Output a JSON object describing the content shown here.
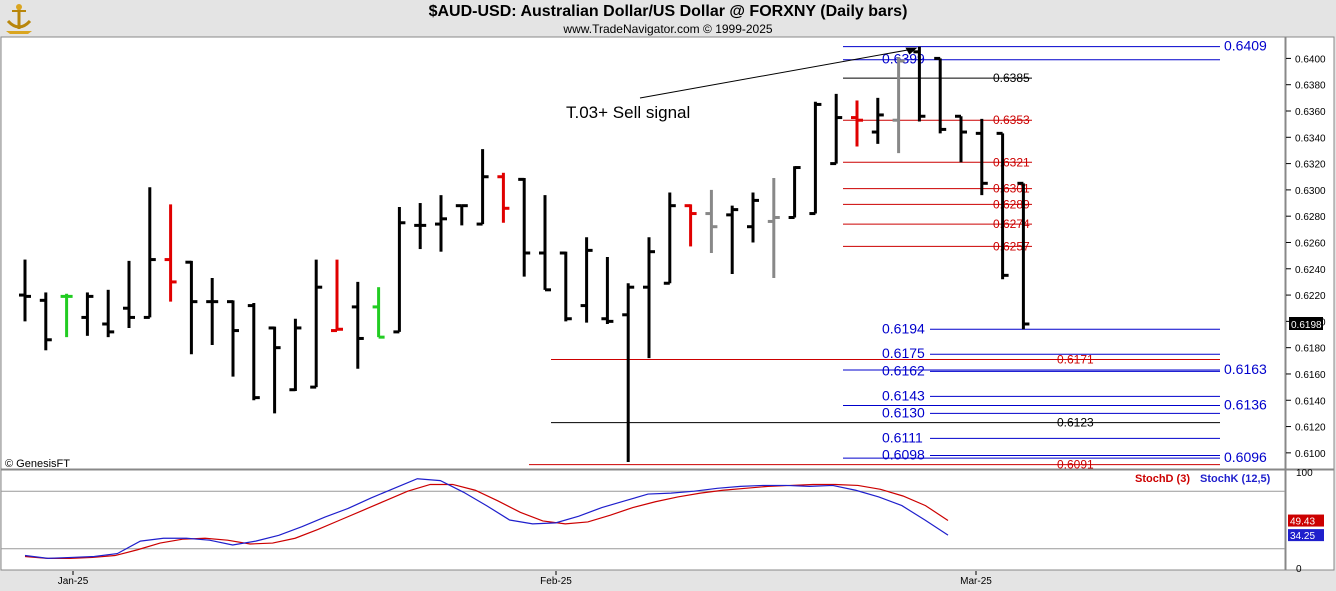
{
  "header": {
    "title": "$AUD-USD:  Australian Dollar/US Dollar @ FORXNY  (Daily bars)",
    "subtitle": "www.TradeNavigator.com © 1999-2025",
    "logo_icon": "trade-navigator-logo-icon"
  },
  "chart_data": [
    {
      "type": "ohlc",
      "title": "$AUD-USD:  Australian Dollar/US Dollar @ FORXNY  (Daily bars)",
      "ylim": [
        0.609,
        0.6414
      ],
      "y_ticks": [
        "0.6400",
        "0.6380",
        "0.6360",
        "0.6340",
        "0.6320",
        "0.6300",
        "0.6280",
        "0.6260",
        "0.6240",
        "0.6220",
        "0.6200",
        "0.6180",
        "0.6160",
        "0.6140",
        "0.6120",
        "0.6100"
      ],
      "x_ticks": [
        "Jan-25",
        "Feb-25",
        "Mar-25"
      ],
      "last_price": "0.6198",
      "watermark": "© GenesisFT",
      "colors": {
        "black": "#000000",
        "red": "#e00000",
        "green": "#22cc22",
        "gray": "#888888"
      },
      "bars": [
        {
          "o": 0.622,
          "h": 0.6247,
          "l": 0.62,
          "c": 0.6219,
          "color": "black"
        },
        {
          "o": 0.6216,
          "h": 0.6222,
          "l": 0.6178,
          "c": 0.6186,
          "color": "black"
        },
        {
          "o": 0.6219,
          "h": 0.6221,
          "l": 0.6188,
          "c": 0.6219,
          "color": "green"
        },
        {
          "o": 0.6203,
          "h": 0.6222,
          "l": 0.6189,
          "c": 0.6219,
          "color": "black"
        },
        {
          "o": 0.6198,
          "h": 0.6224,
          "l": 0.6188,
          "c": 0.6192,
          "color": "black"
        },
        {
          "o": 0.621,
          "h": 0.6246,
          "l": 0.6195,
          "c": 0.6203,
          "color": "black"
        },
        {
          "o": 0.6203,
          "h": 0.6302,
          "l": 0.6203,
          "c": 0.6247,
          "color": "black"
        },
        {
          "o": 0.6247,
          "h": 0.6289,
          "l": 0.6215,
          "c": 0.623,
          "color": "red"
        },
        {
          "o": 0.6245,
          "h": 0.6246,
          "l": 0.6175,
          "c": 0.6215,
          "color": "black"
        },
        {
          "o": 0.6215,
          "h": 0.6233,
          "l": 0.6182,
          "c": 0.6215,
          "color": "black"
        },
        {
          "o": 0.6215,
          "h": 0.6216,
          "l": 0.6158,
          "c": 0.6193,
          "color": "black"
        },
        {
          "o": 0.6212,
          "h": 0.6214,
          "l": 0.614,
          "c": 0.6142,
          "color": "black"
        },
        {
          "o": 0.6195,
          "h": 0.6196,
          "l": 0.613,
          "c": 0.618,
          "color": "black"
        },
        {
          "o": 0.6148,
          "h": 0.6202,
          "l": 0.6147,
          "c": 0.6195,
          "color": "black"
        },
        {
          "o": 0.615,
          "h": 0.6247,
          "l": 0.615,
          "c": 0.6226,
          "color": "black"
        },
        {
          "o": 0.6193,
          "h": 0.6247,
          "l": 0.6193,
          "c": 0.6194,
          "color": "red"
        },
        {
          "o": 0.6211,
          "h": 0.623,
          "l": 0.6164,
          "c": 0.6187,
          "color": "black"
        },
        {
          "o": 0.6211,
          "h": 0.6226,
          "l": 0.6188,
          "c": 0.6188,
          "color": "green"
        },
        {
          "o": 0.6192,
          "h": 0.6287,
          "l": 0.6192,
          "c": 0.6275,
          "color": "black"
        },
        {
          "o": 0.6273,
          "h": 0.629,
          "l": 0.6255,
          "c": 0.6273,
          "color": "black"
        },
        {
          "o": 0.6274,
          "h": 0.6296,
          "l": 0.6253,
          "c": 0.6278,
          "color": "black"
        },
        {
          "o": 0.6288,
          "h": 0.6288,
          "l": 0.6273,
          "c": 0.6288,
          "color": "black"
        },
        {
          "o": 0.6274,
          "h": 0.6331,
          "l": 0.6274,
          "c": 0.631,
          "color": "black"
        },
        {
          "o": 0.631,
          "h": 0.6313,
          "l": 0.6275,
          "c": 0.6286,
          "color": "red"
        },
        {
          "o": 0.6308,
          "h": 0.6309,
          "l": 0.6234,
          "c": 0.6252,
          "color": "black"
        },
        {
          "o": 0.6252,
          "h": 0.6296,
          "l": 0.6224,
          "c": 0.6224,
          "color": "black"
        },
        {
          "o": 0.6252,
          "h": 0.6253,
          "l": 0.62,
          "c": 0.6202,
          "color": "black"
        },
        {
          "o": 0.6212,
          "h": 0.6264,
          "l": 0.6199,
          "c": 0.6254,
          "color": "black"
        },
        {
          "o": 0.6202,
          "h": 0.6249,
          "l": 0.6198,
          "c": 0.62,
          "color": "black"
        },
        {
          "o": 0.6205,
          "h": 0.6229,
          "l": 0.6093,
          "c": 0.6226,
          "color": "black"
        },
        {
          "o": 0.6226,
          "h": 0.6264,
          "l": 0.6172,
          "c": 0.6253,
          "color": "black"
        },
        {
          "o": 0.6229,
          "h": 0.6298,
          "l": 0.6229,
          "c": 0.6288,
          "color": "black"
        },
        {
          "o": 0.6288,
          "h": 0.6289,
          "l": 0.6257,
          "c": 0.6282,
          "color": "red"
        },
        {
          "o": 0.6282,
          "h": 0.63,
          "l": 0.6252,
          "c": 0.6272,
          "color": "gray"
        },
        {
          "o": 0.6281,
          "h": 0.6288,
          "l": 0.6236,
          "c": 0.6285,
          "color": "black"
        },
        {
          "o": 0.6272,
          "h": 0.6298,
          "l": 0.626,
          "c": 0.6292,
          "color": "black"
        },
        {
          "o": 0.6276,
          "h": 0.6309,
          "l": 0.6233,
          "c": 0.6279,
          "color": "gray"
        },
        {
          "o": 0.6279,
          "h": 0.6318,
          "l": 0.6279,
          "c": 0.6317,
          "color": "black"
        },
        {
          "o": 0.6282,
          "h": 0.6367,
          "l": 0.6282,
          "c": 0.6365,
          "color": "black"
        },
        {
          "o": 0.632,
          "h": 0.6373,
          "l": 0.632,
          "c": 0.6355,
          "color": "black"
        },
        {
          "o": 0.6355,
          "h": 0.6368,
          "l": 0.6333,
          "c": 0.6353,
          "color": "red"
        },
        {
          "o": 0.6344,
          "h": 0.637,
          "l": 0.6335,
          "c": 0.6357,
          "color": "black"
        },
        {
          "o": 0.6353,
          "h": 0.6401,
          "l": 0.6328,
          "c": 0.6398,
          "color": "gray"
        },
        {
          "o": 0.6405,
          "h": 0.6409,
          "l": 0.6352,
          "c": 0.6356,
          "color": "black"
        },
        {
          "o": 0.64,
          "h": 0.64,
          "l": 0.6343,
          "c": 0.6346,
          "color": "black"
        },
        {
          "o": 0.6356,
          "h": 0.6356,
          "l": 0.6321,
          "c": 0.6344,
          "color": "black"
        },
        {
          "o": 0.6343,
          "h": 0.6354,
          "l": 0.6296,
          "c": 0.6305,
          "color": "black"
        },
        {
          "o": 0.6343,
          "h": 0.6343,
          "l": 0.6232,
          "c": 0.6235,
          "color": "black"
        },
        {
          "o": 0.6305,
          "h": 0.6305,
          "l": 0.6194,
          "c": 0.6198,
          "color": "black"
        }
      ],
      "levels": [
        {
          "label": "0.6409",
          "value": 0.6409,
          "color": "#0000cc",
          "side": "right"
        },
        {
          "label": "0.6399",
          "value": 0.6399,
          "color": "#0000cc",
          "side": "left"
        },
        {
          "label": "0.6385",
          "value": 0.6385,
          "color": "#000000",
          "side": "inner"
        },
        {
          "label": "0.6353",
          "value": 0.6353,
          "color": "#cc0000",
          "side": "inner"
        },
        {
          "label": "0.6321",
          "value": 0.6321,
          "color": "#cc0000",
          "side": "inner"
        },
        {
          "label": "0.6301",
          "value": 0.6301,
          "color": "#cc0000",
          "side": "inner"
        },
        {
          "label": "0.6289",
          "value": 0.6289,
          "color": "#cc0000",
          "side": "inner"
        },
        {
          "label": "0.6274",
          "value": 0.6274,
          "color": "#cc0000",
          "side": "inner"
        },
        {
          "label": "0.6257",
          "value": 0.6257,
          "color": "#cc0000",
          "side": "inner"
        },
        {
          "label": "0.6194",
          "value": 0.6194,
          "color": "#0000cc",
          "side": "left"
        },
        {
          "label": "0.6175",
          "value": 0.6175,
          "color": "#0000cc",
          "side": "left"
        },
        {
          "label": "0.6171",
          "value": 0.6171,
          "color": "#cc0000",
          "side": "mid"
        },
        {
          "label": "0.6162",
          "value": 0.6162,
          "color": "#0000cc",
          "side": "left"
        },
        {
          "label": "0.6163",
          "value": 0.6163,
          "color": "#0000cc",
          "side": "right"
        },
        {
          "label": "0.6143",
          "value": 0.6143,
          "color": "#0000cc",
          "side": "left"
        },
        {
          "label": "0.6136",
          "value": 0.6136,
          "color": "#0000cc",
          "side": "right"
        },
        {
          "label": "0.6130",
          "value": 0.613,
          "color": "#0000cc",
          "side": "left"
        },
        {
          "label": "0.6123",
          "value": 0.6123,
          "color": "#000000",
          "side": "mid"
        },
        {
          "label": "0.6111",
          "value": 0.6111,
          "color": "#0000cc",
          "side": "left"
        },
        {
          "label": "0.6098",
          "value": 0.6098,
          "color": "#0000cc",
          "side": "left"
        },
        {
          "label": "0.6096",
          "value": 0.6096,
          "color": "#0000cc",
          "side": "right"
        },
        {
          "label": "0.6091",
          "value": 0.6091,
          "color": "#cc0000",
          "side": "mid"
        }
      ],
      "annotation": {
        "text": "T.03+ Sell signal"
      }
    },
    {
      "type": "line",
      "ylim": [
        0,
        100
      ],
      "y_ticks": [
        "100",
        "0"
      ],
      "series": [
        {
          "name": "StochD (3)",
          "color": "#cc0000",
          "last_label": "49.43",
          "values": [
            12,
            10,
            10,
            11,
            13,
            19,
            26,
            30,
            31,
            29,
            25,
            26,
            31,
            40,
            50,
            60,
            70,
            80,
            87,
            87,
            81,
            70,
            58,
            49,
            46,
            48,
            55,
            63,
            69,
            74,
            78,
            81,
            83,
            85,
            86,
            87,
            87,
            86,
            82,
            75,
            65,
            49.43
          ]
        },
        {
          "name": "StochK (12,5)",
          "color": "#1f1fcc",
          "last_label": "34.25",
          "values": [
            13,
            10,
            11,
            12,
            15,
            28,
            31,
            31,
            29,
            24,
            28,
            34,
            43,
            53,
            62,
            73,
            83,
            93,
            91,
            79,
            65,
            50,
            46,
            47,
            54,
            63,
            70,
            77,
            78,
            80,
            83,
            85,
            86,
            86,
            85,
            86,
            81,
            74,
            65,
            50,
            34.25
          ]
        }
      ]
    }
  ]
}
